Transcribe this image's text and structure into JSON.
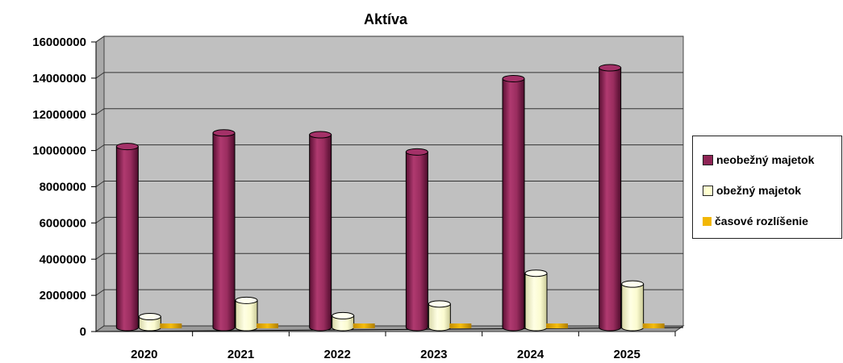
{
  "chart_data": {
    "type": "bar",
    "title": "Aktíva",
    "xlabel": "",
    "ylabel": "",
    "categories": [
      "2020",
      "2021",
      "2022",
      "2023",
      "2024",
      "2025"
    ],
    "ylim": [
      0,
      16000000
    ],
    "yticks": [
      "0",
      "2000000",
      "4000000",
      "6000000",
      "8000000",
      "10000000",
      "12000000",
      "14000000",
      "16000000"
    ],
    "grid": true,
    "legend_position": "right",
    "series": [
      {
        "name": "neobežný majetok",
        "color": "#8e2455",
        "values": [
          10000000,
          10750000,
          10650000,
          9700000,
          13750000,
          14350000
        ]
      },
      {
        "name": "obežný majetok",
        "color": "#ffffd0",
        "values": [
          600000,
          1500000,
          650000,
          1300000,
          3000000,
          2400000
        ]
      },
      {
        "name": "časové rozlíšenie",
        "color": "#f2b705",
        "values": [
          20000,
          20000,
          20000,
          20000,
          20000,
          20000
        ]
      }
    ]
  }
}
